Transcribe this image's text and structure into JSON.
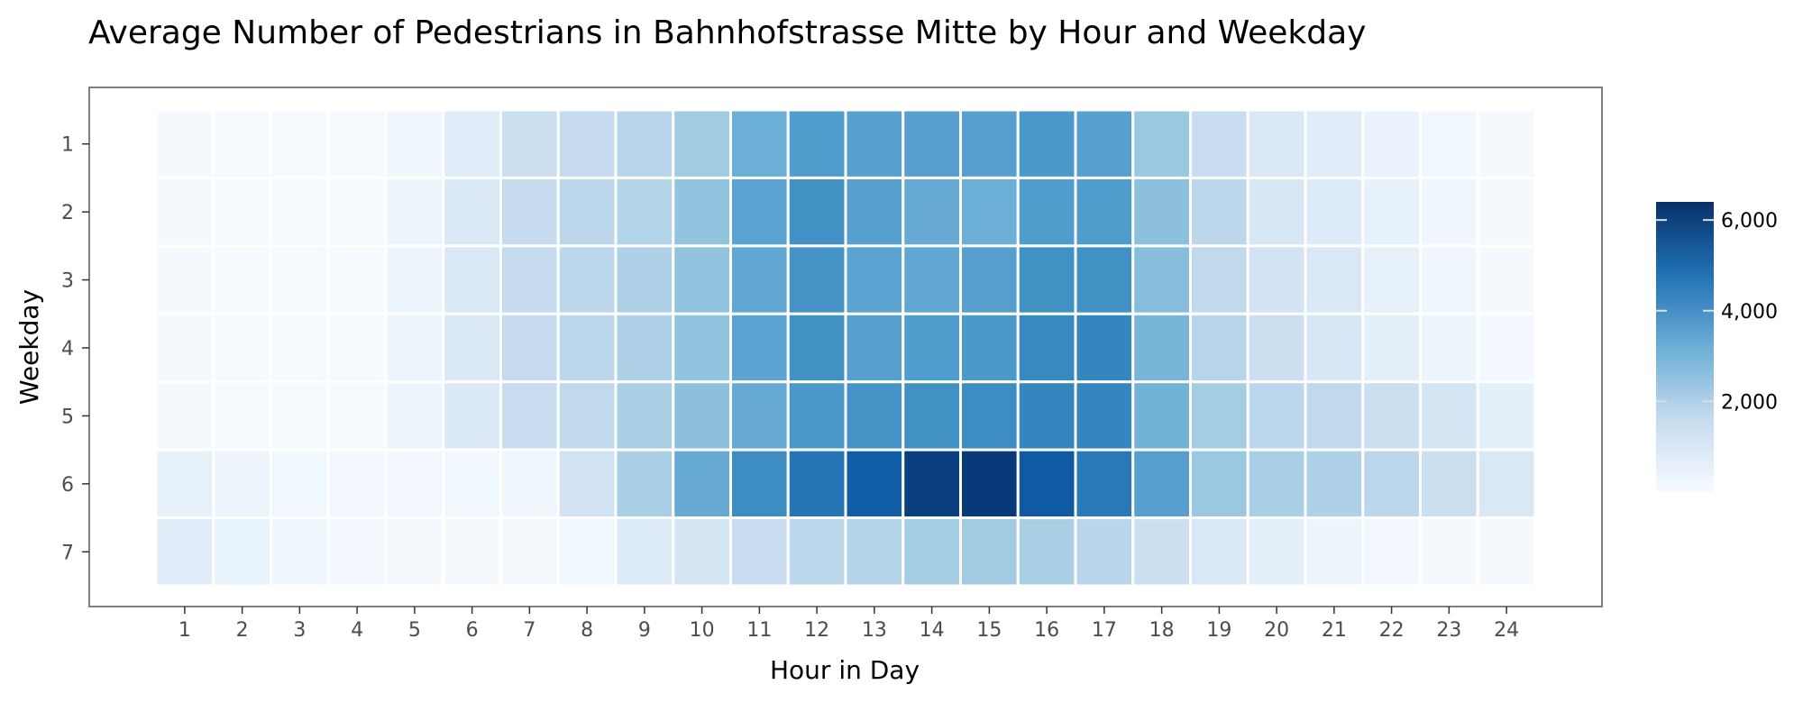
{
  "chart_data": {
    "type": "heatmap",
    "title": "Average Number of Pedestrians in Bahnhofstrasse Mitte by Hour and Weekday",
    "xlabel": "Hour in Day",
    "ylabel": "Weekday",
    "x_categories": [
      "1",
      "2",
      "3",
      "4",
      "5",
      "6",
      "7",
      "8",
      "9",
      "10",
      "11",
      "12",
      "13",
      "14",
      "15",
      "16",
      "17",
      "18",
      "19",
      "20",
      "21",
      "22",
      "23",
      "24"
    ],
    "y_categories": [
      "1",
      "2",
      "3",
      "4",
      "5",
      "6",
      "7"
    ],
    "values": [
      [
        100,
        60,
        40,
        40,
        250,
        700,
        1400,
        1600,
        1900,
        2400,
        3200,
        3700,
        3600,
        3600,
        3600,
        3800,
        3600,
        2500,
        1500,
        900,
        700,
        400,
        200,
        80
      ],
      [
        80,
        50,
        40,
        50,
        300,
        900,
        1600,
        1800,
        2000,
        2600,
        3500,
        4000,
        3600,
        3300,
        3200,
        3700,
        3700,
        2700,
        1800,
        1000,
        800,
        500,
        250,
        100
      ],
      [
        80,
        50,
        40,
        50,
        300,
        900,
        1600,
        1800,
        2100,
        2600,
        3400,
        3900,
        3500,
        3400,
        3600,
        4000,
        4000,
        2800,
        1700,
        1200,
        900,
        500,
        250,
        100
      ],
      [
        90,
        60,
        40,
        50,
        300,
        900,
        1600,
        1800,
        2100,
        2600,
        3500,
        4000,
        3600,
        3700,
        3800,
        4200,
        4300,
        3000,
        1900,
        1400,
        1000,
        600,
        300,
        120
      ],
      [
        100,
        70,
        50,
        50,
        300,
        850,
        1500,
        1700,
        2200,
        2700,
        3300,
        3800,
        3900,
        4000,
        4100,
        4300,
        4300,
        3100,
        2300,
        1800,
        1700,
        1400,
        1100,
        600
      ],
      [
        500,
        300,
        200,
        150,
        150,
        200,
        250,
        1200,
        2200,
        3300,
        4100,
        4700,
        5300,
        6100,
        6200,
        5400,
        4600,
        3600,
        2500,
        2200,
        2100,
        1800,
        1400,
        900
      ],
      [
        700,
        450,
        250,
        150,
        100,
        100,
        100,
        200,
        800,
        1100,
        1500,
        1800,
        2000,
        2300,
        2400,
        2200,
        1900,
        1400,
        900,
        600,
        300,
        150,
        100,
        80
      ]
    ],
    "value_range": [
      0,
      6400
    ],
    "colorbar_ticks": [
      2000,
      4000,
      6000
    ],
    "colorbar_tick_labels": [
      "2,000",
      "4,000",
      "6,000"
    ],
    "color_low": "#f7fbff",
    "color_high": "#08306b",
    "legend_position": "right",
    "grid": false
  }
}
